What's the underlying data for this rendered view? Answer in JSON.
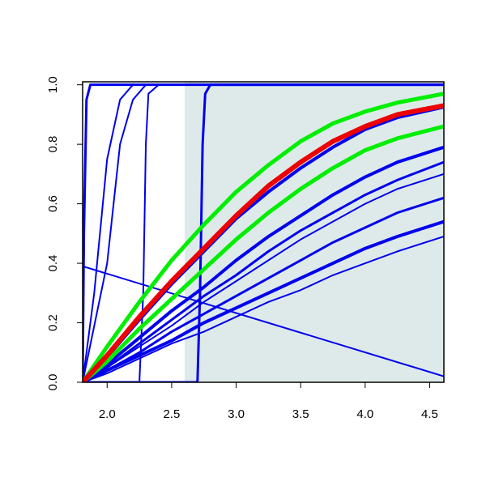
{
  "chart_data": {
    "type": "line",
    "xlim": [
      1.81,
      4.61
    ],
    "ylim": [
      0,
      1.01
    ],
    "xticks": [
      {
        "value": 2,
        "label": "2.0"
      },
      2.5,
      {
        "value": 3,
        "label": "3.0"
      },
      3.5,
      {
        "value": 4,
        "label": "4.0"
      },
      4.5
    ],
    "yticks": [
      {
        "value": 0,
        "label": "0.0"
      },
      0.2,
      0.4,
      0.6,
      0.8,
      {
        "value": 1,
        "label": "1.0"
      }
    ],
    "shade": {
      "x": [
        2.6,
        4.61
      ],
      "color": "#deeaea"
    },
    "series": [
      {
        "color": "#0000ee",
        "width": 2,
        "x": [
          1.81,
          4.61
        ],
        "values": [
          0.39,
          0.02
        ]
      },
      {
        "color": "#0000ee",
        "width": 3,
        "x": [
          1.81,
          1.82,
          1.84,
          1.87,
          4.61
        ],
        "values": [
          0,
          0.5,
          0.95,
          1,
          1
        ]
      },
      {
        "color": "#0000ee",
        "width": 2,
        "x": [
          1.81,
          1.9,
          2.0,
          2.1,
          2.2,
          4.61
        ],
        "values": [
          0,
          0.3,
          0.75,
          0.95,
          1,
          1
        ]
      },
      {
        "color": "#0000ee",
        "width": 2,
        "x": [
          1.81,
          2.0,
          2.1,
          2.2,
          2.3,
          4.61
        ],
        "values": [
          0,
          0.4,
          0.8,
          0.95,
          1,
          1
        ]
      },
      {
        "color": "#0000ee",
        "width": 2,
        "x": [
          1.81,
          2.25,
          2.28,
          2.3,
          2.32,
          2.4,
          4.61
        ],
        "values": [
          0,
          0,
          0.3,
          0.8,
          0.97,
          1,
          1
        ]
      },
      {
        "color": "#0000ee",
        "width": 3,
        "x": [
          1.81,
          2.7,
          2.72,
          2.74,
          2.76,
          2.8,
          4.61
        ],
        "values": [
          0,
          0,
          0.3,
          0.8,
          0.97,
          1,
          1
        ]
      },
      {
        "color": "#0000ee",
        "width": 2,
        "x": [
          1.81,
          2.0,
          2.25,
          2.5,
          2.75,
          3.0,
          3.25,
          3.5,
          3.75,
          4.0,
          4.25,
          4.61
        ],
        "values": [
          0,
          0.03,
          0.08,
          0.13,
          0.17,
          0.22,
          0.27,
          0.31,
          0.36,
          0.4,
          0.44,
          0.49
        ]
      },
      {
        "color": "#0000ee",
        "width": 4,
        "x": [
          1.81,
          2.0,
          2.25,
          2.5,
          2.75,
          3.0,
          3.25,
          3.5,
          3.75,
          4.0,
          4.25,
          4.61
        ],
        "values": [
          0,
          0.04,
          0.09,
          0.14,
          0.2,
          0.25,
          0.3,
          0.35,
          0.4,
          0.45,
          0.49,
          0.54
        ]
      },
      {
        "color": "#0000ee",
        "width": 3,
        "x": [
          1.81,
          2.0,
          2.25,
          2.5,
          2.75,
          3.0,
          3.25,
          3.5,
          3.75,
          4.0,
          4.25,
          4.61
        ],
        "values": [
          0,
          0.04,
          0.1,
          0.17,
          0.23,
          0.29,
          0.35,
          0.41,
          0.47,
          0.52,
          0.57,
          0.62
        ]
      },
      {
        "color": "#0000ee",
        "width": 2,
        "x": [
          1.81,
          2.0,
          2.25,
          2.5,
          2.75,
          3.0,
          3.25,
          3.5,
          3.75,
          4.0,
          4.25,
          4.61
        ],
        "values": [
          0,
          0.05,
          0.12,
          0.19,
          0.27,
          0.34,
          0.41,
          0.48,
          0.54,
          0.6,
          0.65,
          0.7
        ]
      },
      {
        "color": "#0000ee",
        "width": 3,
        "x": [
          1.81,
          2.0,
          2.25,
          2.5,
          2.75,
          3.0,
          3.25,
          3.5,
          3.75,
          4.0,
          4.25,
          4.61
        ],
        "values": [
          0,
          0.05,
          0.13,
          0.21,
          0.29,
          0.36,
          0.44,
          0.51,
          0.57,
          0.63,
          0.68,
          0.74
        ]
      },
      {
        "color": "#0000ee",
        "width": 4,
        "x": [
          1.81,
          2.0,
          2.25,
          2.5,
          2.75,
          3.0,
          3.25,
          3.5,
          3.75,
          4.0,
          4.25,
          4.61
        ],
        "values": [
          0,
          0.06,
          0.15,
          0.24,
          0.32,
          0.41,
          0.49,
          0.56,
          0.63,
          0.69,
          0.74,
          0.79
        ]
      },
      {
        "color": "#0000ee",
        "width": 4,
        "x": [
          1.81,
          2.0,
          2.25,
          2.5,
          2.75,
          3.0,
          3.25,
          3.5,
          3.75,
          4.0,
          4.25,
          4.61
        ],
        "values": [
          0,
          0.085,
          0.21,
          0.33,
          0.44,
          0.55,
          0.64,
          0.72,
          0.79,
          0.85,
          0.89,
          0.925
        ]
      },
      {
        "color": "#00ee00",
        "width": 5,
        "x": [
          1.81,
          2.0,
          2.25,
          2.5,
          2.75,
          3.0,
          3.25,
          3.5,
          3.75,
          4.0,
          4.25,
          4.61
        ],
        "values": [
          0,
          0.07,
          0.18,
          0.28,
          0.38,
          0.48,
          0.57,
          0.65,
          0.72,
          0.78,
          0.82,
          0.86
        ]
      },
      {
        "color": "#00ee00",
        "width": 5,
        "x": [
          1.81,
          2.0,
          2.25,
          2.5,
          2.75,
          3.0,
          3.25,
          3.5,
          3.75,
          4.0,
          4.25,
          4.61
        ],
        "values": [
          0,
          0.12,
          0.27,
          0.41,
          0.53,
          0.64,
          0.73,
          0.81,
          0.87,
          0.91,
          0.94,
          0.97
        ]
      },
      {
        "color": "#ee0000",
        "width": 6,
        "x": [
          1.81,
          2.0,
          2.25,
          2.5,
          2.75,
          3.0,
          3.25,
          3.5,
          3.75,
          4.0,
          4.25,
          4.61
        ],
        "values": [
          0,
          0.09,
          0.22,
          0.34,
          0.45,
          0.56,
          0.66,
          0.74,
          0.81,
          0.86,
          0.9,
          0.93
        ]
      }
    ]
  }
}
